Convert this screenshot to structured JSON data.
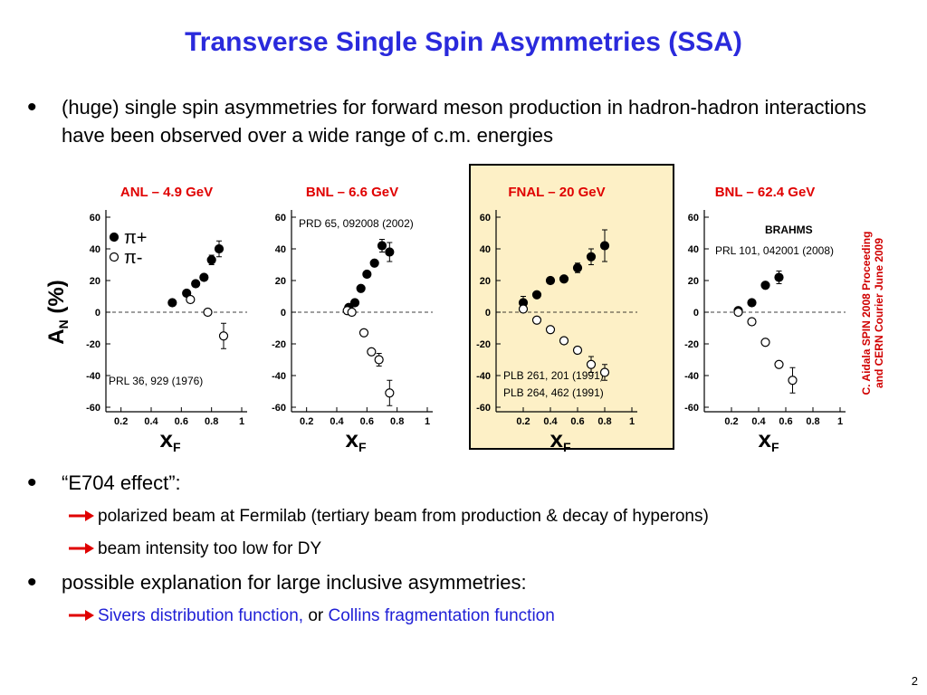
{
  "slide": {
    "title": "Transverse Single Spin Asymmetries (SSA)",
    "bullets": [
      {
        "text": "(huge) single spin asymmetries for forward meson production in hadron-hadron interactions have been observed over a wide range of c.m. energies",
        "subs": []
      },
      {
        "text": "“E704 effect”:",
        "subs": [
          [
            {
              "text": "polarized beam at Fermilab (tertiary beam from production & decay of hyperons)",
              "color": "#000000"
            }
          ],
          [
            {
              "text": " beam intensity too low for DY",
              "color": "#000000"
            }
          ]
        ]
      },
      {
        "text": "possible explanation for large inclusive asymmetries:",
        "subs": [
          [
            {
              "text": "Sivers distribution function,",
              "color": "#1f1fd6"
            },
            {
              "text": " or ",
              "color": "#000000"
            },
            {
              "text": "Collins fragmentation function",
              "color": "#1f1fd6"
            }
          ]
        ]
      }
    ],
    "side_note": [
      "C. Aidala SPIN 2008 Proceeding",
      "and CERN Courier June 2009"
    ],
    "page_number": "2"
  },
  "chart_data": [
    {
      "type": "scatter",
      "title": "ANL – 4.9 GeV",
      "xlim": [
        0.1,
        1.0
      ],
      "ylim": [
        -60,
        60
      ],
      "xticks": [
        0.2,
        0.4,
        0.6,
        0.8,
        1
      ],
      "yticks": [
        -60,
        -40,
        -20,
        0,
        20,
        40,
        60
      ],
      "hline": 0,
      "ylabel": {
        "main": "A",
        "sub": "N",
        "unit": " (%)"
      },
      "xlabel": {
        "main": "x",
        "sub": "F"
      },
      "legend": "upper left",
      "annotations": [
        "PRL 36, 929 (1976)"
      ],
      "series": [
        {
          "name": "π+",
          "fill": "filled",
          "color": "#000000",
          "x": [
            0.54,
            0.635,
            0.695,
            0.75,
            0.8,
            0.85
          ],
          "values": [
            6,
            12,
            18,
            22,
            33,
            40
          ],
          "errors": [
            null,
            null,
            null,
            null,
            3,
            5
          ]
        },
        {
          "name": "π-",
          "fill": "open",
          "color": "#000000",
          "x": [
            0.66,
            0.775,
            0.88
          ],
          "values": [
            8,
            0,
            -15
          ],
          "errors": [
            null,
            null,
            8
          ]
        }
      ]
    },
    {
      "type": "scatter",
      "title": "BNL – 6.6 GeV",
      "xlim": [
        0.1,
        1.0
      ],
      "ylim": [
        -60,
        60
      ],
      "xticks": [
        0.2,
        0.4,
        0.6,
        0.8,
        1
      ],
      "yticks": [
        -60,
        -40,
        -20,
        0,
        20,
        40,
        60
      ],
      "hline": 0,
      "xlabel": {
        "main": "x",
        "sub": "F"
      },
      "annotations": [
        "PRD 65, 092008 (2002)"
      ],
      "series": [
        {
          "fill": "filled",
          "color": "#000000",
          "x": [
            0.48,
            0.52,
            0.56,
            0.6,
            0.65,
            0.7,
            0.75
          ],
          "values": [
            3,
            6,
            15,
            24,
            31,
            42,
            38
          ],
          "errors": [
            null,
            null,
            null,
            null,
            null,
            4,
            6
          ]
        },
        {
          "fill": "open",
          "color": "#000000",
          "x": [
            0.47,
            0.5,
            0.58,
            0.63,
            0.68,
            0.75
          ],
          "values": [
            1,
            0,
            -13,
            -25,
            -30,
            -51
          ],
          "errors": [
            null,
            null,
            null,
            null,
            4,
            8
          ]
        }
      ]
    },
    {
      "type": "scatter",
      "title": "FNAL – 20 GeV",
      "xlim": [
        0,
        1.0
      ],
      "ylim": [
        -60,
        60
      ],
      "xticks": [
        0.2,
        0.4,
        0.6,
        0.8,
        1
      ],
      "yticks": [
        -60,
        -40,
        -20,
        0,
        20,
        40,
        60
      ],
      "hline": 0,
      "xlabel": {
        "main": "x",
        "sub": "F"
      },
      "annotations": [
        "PLB 261, 201 (1991)",
        "PLB 264, 462 (1991)"
      ],
      "series": [
        {
          "fill": "filled",
          "color": "#000000",
          "x": [
            0.2,
            0.3,
            0.4,
            0.5,
            0.6,
            0.7,
            0.8
          ],
          "values": [
            6,
            11,
            20,
            21,
            28,
            35,
            42
          ],
          "errors": [
            4,
            null,
            null,
            null,
            3,
            5,
            10
          ]
        },
        {
          "fill": "open",
          "color": "#000000",
          "x": [
            0.2,
            0.3,
            0.4,
            0.5,
            0.6,
            0.7,
            0.8
          ],
          "values": [
            2,
            -5,
            -11,
            -18,
            -24,
            -33,
            -38
          ],
          "errors": [
            null,
            null,
            null,
            null,
            null,
            5,
            5
          ]
        }
      ]
    },
    {
      "type": "scatter",
      "title": "BNL – 62.4 GeV",
      "xlim": [
        0,
        1.0
      ],
      "ylim": [
        -60,
        60
      ],
      "xticks": [
        0.2,
        0.4,
        0.6,
        0.8,
        1
      ],
      "yticks": [
        -60,
        -40,
        -20,
        0,
        20,
        40,
        60
      ],
      "hline": 0,
      "xlabel": {
        "main": "x",
        "sub": "F"
      },
      "annotations": [
        "BRAHMS",
        "PRL 101, 042001 (2008)"
      ],
      "series": [
        {
          "fill": "filled",
          "color": "#000000",
          "x": [
            0.25,
            0.35,
            0.45,
            0.55
          ],
          "values": [
            1,
            6,
            17,
            22
          ],
          "errors": [
            null,
            null,
            null,
            4
          ]
        },
        {
          "fill": "open",
          "color": "#000000",
          "x": [
            0.25,
            0.35,
            0.45,
            0.55,
            0.65
          ],
          "values": [
            0,
            -6,
            -19,
            -33,
            -43
          ],
          "errors": [
            null,
            null,
            null,
            null,
            8
          ]
        }
      ]
    }
  ]
}
